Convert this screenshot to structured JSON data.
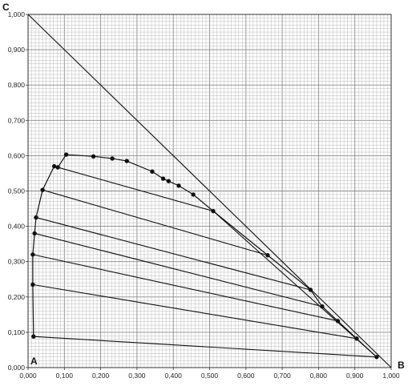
{
  "chart_data": {
    "type": "scatter",
    "title": "",
    "xlabel": "",
    "ylabel": "",
    "xlim": [
      0,
      1
    ],
    "ylim": [
      0,
      1
    ],
    "x_ticks": [
      "0,000",
      "0,100",
      "0,200",
      "0,300",
      "0,400",
      "0,500",
      "0,600",
      "0,700",
      "0,800",
      "0,900",
      "1,000"
    ],
    "y_ticks": [
      "0,000",
      "0,100",
      "0,200",
      "0,300",
      "0,400",
      "0,500",
      "0,600",
      "0,700",
      "0,800",
      "0,900",
      "1,000"
    ],
    "grid": true,
    "corner_labels": {
      "A": "A",
      "B": "B",
      "C": "C"
    },
    "binodal_curve": [
      {
        "x": 0.015,
        "y": 0.088
      },
      {
        "x": 0.013,
        "y": 0.235
      },
      {
        "x": 0.013,
        "y": 0.32
      },
      {
        "x": 0.018,
        "y": 0.38
      },
      {
        "x": 0.022,
        "y": 0.425
      },
      {
        "x": 0.04,
        "y": 0.503
      },
      {
        "x": 0.072,
        "y": 0.57
      },
      {
        "x": 0.082,
        "y": 0.567
      },
      {
        "x": 0.105,
        "y": 0.603
      },
      {
        "x": 0.18,
        "y": 0.598
      },
      {
        "x": 0.232,
        "y": 0.592
      },
      {
        "x": 0.272,
        "y": 0.585
      },
      {
        "x": 0.342,
        "y": 0.555
      },
      {
        "x": 0.372,
        "y": 0.535
      },
      {
        "x": 0.387,
        "y": 0.528
      },
      {
        "x": 0.415,
        "y": 0.515
      },
      {
        "x": 0.455,
        "y": 0.49
      },
      {
        "x": 0.51,
        "y": 0.443
      },
      {
        "x": 0.66,
        "y": 0.318
      },
      {
        "x": 0.778,
        "y": 0.22
      },
      {
        "x": 0.81,
        "y": 0.173
      },
      {
        "x": 0.853,
        "y": 0.132
      },
      {
        "x": 0.905,
        "y": 0.082
      },
      {
        "x": 0.96,
        "y": 0.03
      }
    ],
    "tie_lines": [
      {
        "x1": 0.015,
        "y1": 0.088,
        "x2": 0.96,
        "y2": 0.03
      },
      {
        "x1": 0.013,
        "y1": 0.235,
        "x2": 0.905,
        "y2": 0.082
      },
      {
        "x1": 0.013,
        "y1": 0.32,
        "x2": 0.853,
        "y2": 0.132
      },
      {
        "x1": 0.018,
        "y1": 0.38,
        "x2": 0.81,
        "y2": 0.173
      },
      {
        "x1": 0.022,
        "y1": 0.425,
        "x2": 0.778,
        "y2": 0.22
      },
      {
        "x1": 0.04,
        "y1": 0.503,
        "x2": 0.66,
        "y2": 0.318
      },
      {
        "x1": 0.082,
        "y1": 0.567,
        "x2": 0.51,
        "y2": 0.443
      }
    ],
    "boundary_lines": [
      {
        "x1": 0.0,
        "y1": 1.0,
        "x2": 1.0,
        "y2": 0.0
      },
      {
        "x1": 0.51,
        "y1": 0.443,
        "x2": 0.96,
        "y2": 0.03
      }
    ]
  }
}
